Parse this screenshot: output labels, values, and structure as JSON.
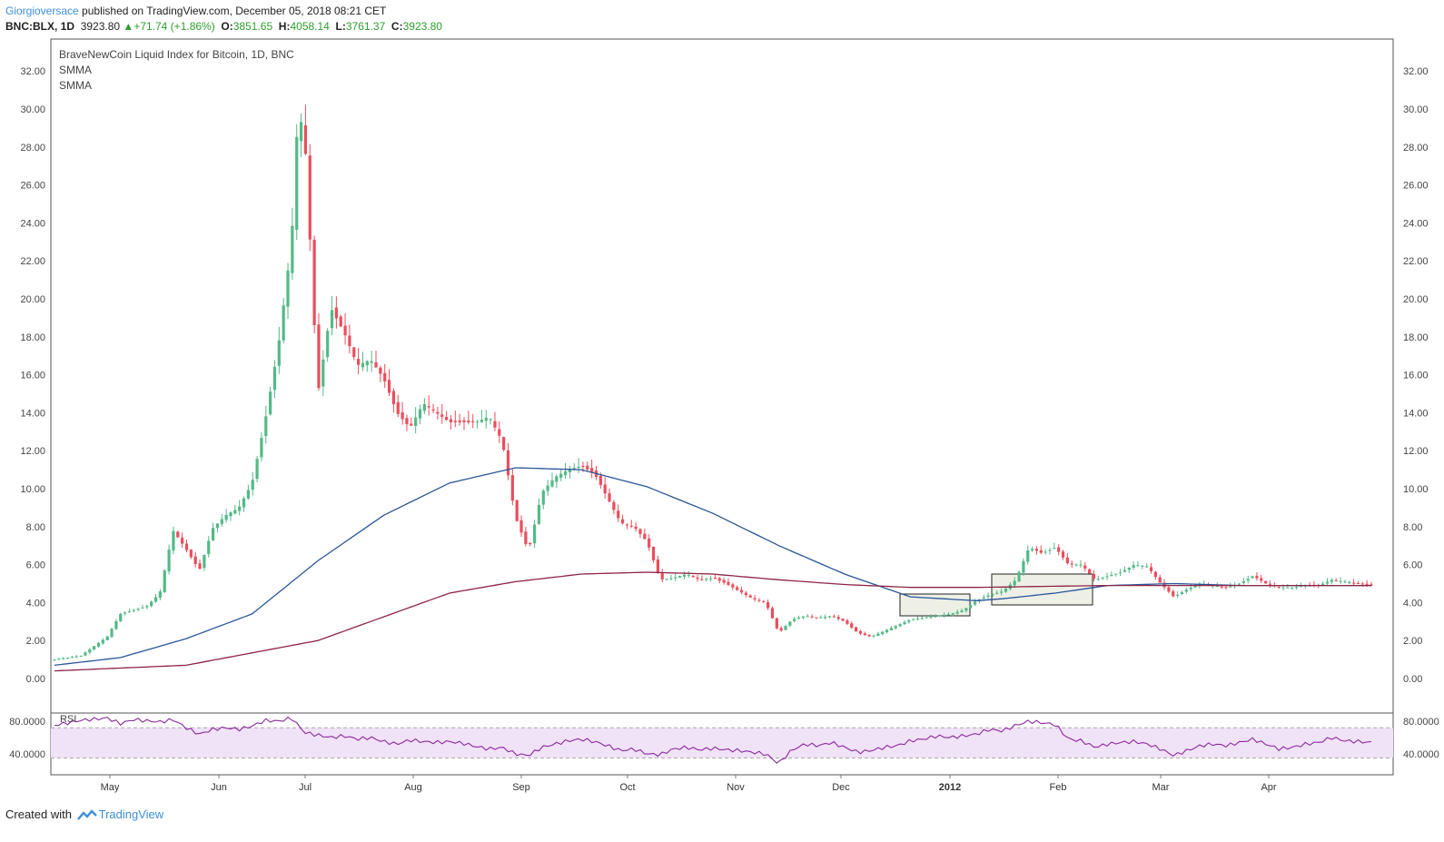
{
  "header": {
    "author": "Giorgioversace",
    "published_text": "published on TradingView.com, December 05, 2018 08:21 CET",
    "symbol": "BNC:BLX, 1D",
    "last": "3923.80",
    "change": "+71.74 (+1.86%)",
    "o_label": "O:",
    "o_value": "3851.65",
    "h_label": "H:",
    "h_value": "4058.14",
    "l_label": "L:",
    "l_value": "3761.37",
    "c_label": "C:",
    "c_value": "3923.80"
  },
  "legend": {
    "title": "BraveNewCoin Liquid Index for Bitcoin, 1D, BNC",
    "indicator1": "SMMA",
    "indicator2": "SMMA",
    "rsi": "RSI"
  },
  "footer": {
    "created_with": "Created with",
    "brand": "TradingView"
  },
  "colors": {
    "up": "#53b987",
    "down": "#eb4d5c",
    "smma_fast": "#2a5597",
    "smma_slow": "#8e2445",
    "rsi_line": "#8a2a9e",
    "rsi_band": "#f0e2f7",
    "box_fill": "#eef0e6"
  },
  "chart_data": {
    "type": "candlestick",
    "price_axis": {
      "ticks": [
        "32.00",
        "30.00",
        "28.00",
        "26.00",
        "24.00",
        "22.00",
        "20.00",
        "18.00",
        "16.00",
        "14.00",
        "12.00",
        "10.00",
        "8.00",
        "6.00",
        "4.00",
        "2.00",
        "0.00"
      ],
      "range": [
        -1.2,
        33.2
      ]
    },
    "time_axis": {
      "labels": [
        "May",
        "Jun",
        "Jul",
        "Aug",
        "Sep",
        "Oct",
        "Nov",
        "Dec",
        "2012",
        "Feb",
        "Mar",
        "Apr"
      ],
      "bold_labels": [
        "2012"
      ]
    },
    "rsi_axis": {
      "ticks": [
        "80.0000",
        "40.0000"
      ],
      "range": [
        20,
        100
      ],
      "band": [
        35,
        72
      ]
    },
    "series": [
      {
        "name": "SMMA",
        "color": "#2a5597",
        "points": [
          [
            0,
            0.7
          ],
          [
            0.05,
            1.1
          ],
          [
            0.1,
            2.1
          ],
          [
            0.15,
            3.4
          ],
          [
            0.2,
            6.2
          ],
          [
            0.25,
            8.6
          ],
          [
            0.3,
            10.3
          ],
          [
            0.35,
            11.1
          ],
          [
            0.4,
            11.0
          ],
          [
            0.45,
            10.1
          ],
          [
            0.5,
            8.7
          ],
          [
            0.55,
            7.0
          ],
          [
            0.6,
            5.5
          ],
          [
            0.65,
            4.3
          ],
          [
            0.7,
            4.1
          ],
          [
            0.72,
            4.2
          ],
          [
            0.76,
            4.5
          ],
          [
            0.8,
            4.9
          ],
          [
            0.85,
            5.0
          ],
          [
            0.9,
            4.9
          ],
          [
            0.95,
            4.9
          ],
          [
            1.0,
            4.9
          ]
        ]
      },
      {
        "name": "SMMA",
        "color": "#8e2445",
        "points": [
          [
            0,
            0.4
          ],
          [
            0.1,
            0.7
          ],
          [
            0.2,
            2.0
          ],
          [
            0.3,
            4.5
          ],
          [
            0.35,
            5.1
          ],
          [
            0.4,
            5.5
          ],
          [
            0.45,
            5.6
          ],
          [
            0.5,
            5.5
          ],
          [
            0.55,
            5.2
          ],
          [
            0.6,
            4.95
          ],
          [
            0.65,
            4.8
          ],
          [
            0.7,
            4.8
          ],
          [
            0.75,
            4.85
          ],
          [
            0.8,
            4.9
          ],
          [
            0.85,
            4.9
          ],
          [
            0.9,
            4.9
          ],
          [
            0.95,
            4.9
          ],
          [
            1.0,
            4.9
          ]
        ]
      }
    ],
    "price_anchors": [
      [
        0,
        1.0
      ],
      [
        0.02,
        1.2
      ],
      [
        0.04,
        2.2
      ],
      [
        0.05,
        3.4
      ],
      [
        0.07,
        3.8
      ],
      [
        0.08,
        4.5
      ],
      [
        0.09,
        7.8
      ],
      [
        0.1,
        6.8
      ],
      [
        0.11,
        5.7
      ],
      [
        0.12,
        7.9
      ],
      [
        0.13,
        8.6
      ],
      [
        0.14,
        9.0
      ],
      [
        0.15,
        10.3
      ],
      [
        0.16,
        13.6
      ],
      [
        0.17,
        17.5
      ],
      [
        0.18,
        23.0
      ],
      [
        0.185,
        30.0
      ],
      [
        0.19,
        28.5
      ],
      [
        0.2,
        15.0
      ],
      [
        0.21,
        19.5
      ],
      [
        0.22,
        18.2
      ],
      [
        0.23,
        16.5
      ],
      [
        0.24,
        16.8
      ],
      [
        0.25,
        15.8
      ],
      [
        0.26,
        14.0
      ],
      [
        0.27,
        13.2
      ],
      [
        0.28,
        14.5
      ],
      [
        0.3,
        13.5
      ],
      [
        0.32,
        13.5
      ],
      [
        0.33,
        13.8
      ],
      [
        0.34,
        12.5
      ],
      [
        0.35,
        8.5
      ],
      [
        0.36,
        6.7
      ],
      [
        0.37,
        9.8
      ],
      [
        0.38,
        10.6
      ],
      [
        0.39,
        11.0
      ],
      [
        0.4,
        11.2
      ],
      [
        0.41,
        10.8
      ],
      [
        0.42,
        9.5
      ],
      [
        0.43,
        8.2
      ],
      [
        0.44,
        8.0
      ],
      [
        0.45,
        7.2
      ],
      [
        0.46,
        5.2
      ],
      [
        0.47,
        5.3
      ],
      [
        0.48,
        5.5
      ],
      [
        0.49,
        5.2
      ],
      [
        0.5,
        5.3
      ],
      [
        0.51,
        5.0
      ],
      [
        0.52,
        4.6
      ],
      [
        0.53,
        4.2
      ],
      [
        0.54,
        4.0
      ],
      [
        0.55,
        2.4
      ],
      [
        0.56,
        3.1
      ],
      [
        0.57,
        3.3
      ],
      [
        0.58,
        3.2
      ],
      [
        0.59,
        3.3
      ],
      [
        0.6,
        3.0
      ],
      [
        0.61,
        2.4
      ],
      [
        0.62,
        2.2
      ],
      [
        0.63,
        2.5
      ],
      [
        0.64,
        2.8
      ],
      [
        0.65,
        3.1
      ],
      [
        0.66,
        3.2
      ],
      [
        0.67,
        3.3
      ],
      [
        0.68,
        3.4
      ],
      [
        0.69,
        3.6
      ],
      [
        0.7,
        4.1
      ],
      [
        0.71,
        4.4
      ],
      [
        0.72,
        4.6
      ],
      [
        0.73,
        5.2
      ],
      [
        0.74,
        6.9
      ],
      [
        0.75,
        6.6
      ],
      [
        0.76,
        6.9
      ],
      [
        0.77,
        6.0
      ],
      [
        0.78,
        6.0
      ],
      [
        0.79,
        5.2
      ],
      [
        0.8,
        5.4
      ],
      [
        0.81,
        5.6
      ],
      [
        0.82,
        6.0
      ],
      [
        0.83,
        5.9
      ],
      [
        0.84,
        5.0
      ],
      [
        0.85,
        4.3
      ],
      [
        0.86,
        4.7
      ],
      [
        0.87,
        5.0
      ],
      [
        0.88,
        4.9
      ],
      [
        0.89,
        4.8
      ],
      [
        0.9,
        5.0
      ],
      [
        0.91,
        5.4
      ],
      [
        0.92,
        5.0
      ],
      [
        0.93,
        4.8
      ],
      [
        0.94,
        4.8
      ],
      [
        0.95,
        4.9
      ],
      [
        0.96,
        4.9
      ],
      [
        0.97,
        5.2
      ],
      [
        0.98,
        5.1
      ],
      [
        1.0,
        4.9
      ]
    ],
    "rsi_anchors": [
      [
        0,
        75
      ],
      [
        0.02,
        81
      ],
      [
        0.04,
        84
      ],
      [
        0.05,
        77
      ],
      [
        0.06,
        82
      ],
      [
        0.08,
        79
      ],
      [
        0.09,
        82
      ],
      [
        0.1,
        72
      ],
      [
        0.11,
        64
      ],
      [
        0.12,
        70
      ],
      [
        0.13,
        72
      ],
      [
        0.14,
        70
      ],
      [
        0.15,
        74
      ],
      [
        0.16,
        81
      ],
      [
        0.17,
        80
      ],
      [
        0.18,
        84
      ],
      [
        0.19,
        66
      ],
      [
        0.2,
        63
      ],
      [
        0.21,
        60
      ],
      [
        0.22,
        62
      ],
      [
        0.23,
        58
      ],
      [
        0.24,
        60
      ],
      [
        0.25,
        55
      ],
      [
        0.26,
        52
      ],
      [
        0.27,
        57
      ],
      [
        0.28,
        55
      ],
      [
        0.29,
        54
      ],
      [
        0.3,
        55
      ],
      [
        0.31,
        53
      ],
      [
        0.32,
        49
      ],
      [
        0.33,
        46
      ],
      [
        0.34,
        48
      ],
      [
        0.35,
        40
      ],
      [
        0.36,
        38
      ],
      [
        0.37,
        48
      ],
      [
        0.38,
        52
      ],
      [
        0.39,
        56
      ],
      [
        0.4,
        58
      ],
      [
        0.41,
        55
      ],
      [
        0.42,
        50
      ],
      [
        0.43,
        44
      ],
      [
        0.44,
        46
      ],
      [
        0.45,
        40
      ],
      [
        0.46,
        39
      ],
      [
        0.47,
        46
      ],
      [
        0.48,
        48
      ],
      [
        0.49,
        45
      ],
      [
        0.5,
        47
      ],
      [
        0.51,
        45
      ],
      [
        0.52,
        44
      ],
      [
        0.53,
        42
      ],
      [
        0.54,
        40
      ],
      [
        0.55,
        28
      ],
      [
        0.56,
        45
      ],
      [
        0.57,
        52
      ],
      [
        0.58,
        50
      ],
      [
        0.59,
        54
      ],
      [
        0.6,
        48
      ],
      [
        0.61,
        42
      ],
      [
        0.62,
        44
      ],
      [
        0.63,
        48
      ],
      [
        0.64,
        50
      ],
      [
        0.65,
        56
      ],
      [
        0.66,
        58
      ],
      [
        0.67,
        62
      ],
      [
        0.68,
        60
      ],
      [
        0.69,
        62
      ],
      [
        0.7,
        64
      ],
      [
        0.71,
        70
      ],
      [
        0.72,
        68
      ],
      [
        0.73,
        75
      ],
      [
        0.74,
        80
      ],
      [
        0.75,
        78
      ],
      [
        0.76,
        76
      ],
      [
        0.77,
        58
      ],
      [
        0.78,
        56
      ],
      [
        0.79,
        48
      ],
      [
        0.8,
        52
      ],
      [
        0.81,
        54
      ],
      [
        0.82,
        55
      ],
      [
        0.83,
        52
      ],
      [
        0.84,
        46
      ],
      [
        0.85,
        38
      ],
      [
        0.86,
        44
      ],
      [
        0.87,
        50
      ],
      [
        0.88,
        52
      ],
      [
        0.89,
        50
      ],
      [
        0.9,
        54
      ],
      [
        0.91,
        58
      ],
      [
        0.92,
        52
      ],
      [
        0.93,
        46
      ],
      [
        0.94,
        48
      ],
      [
        0.95,
        52
      ],
      [
        0.96,
        54
      ],
      [
        0.97,
        60
      ],
      [
        0.98,
        56
      ],
      [
        1.0,
        54
      ]
    ]
  }
}
